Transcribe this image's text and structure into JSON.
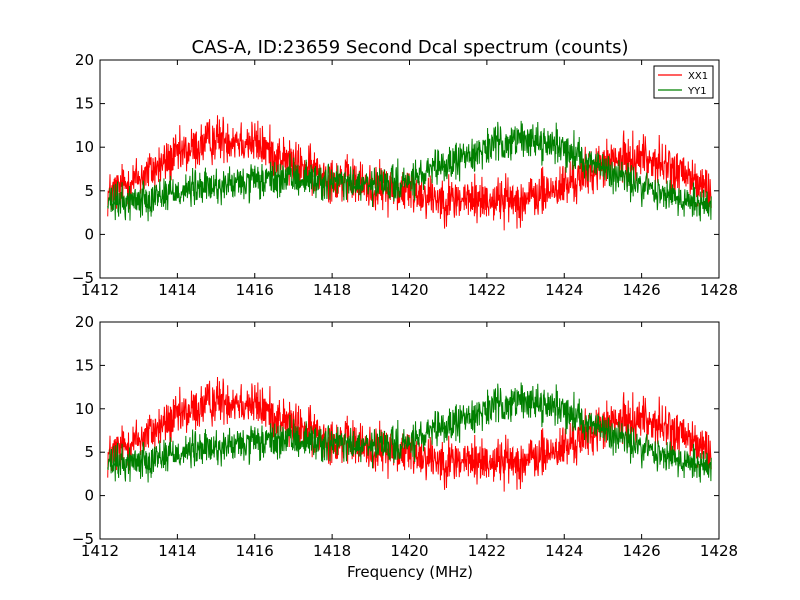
{
  "chart_data": {
    "type": "line",
    "title": "CAS-A, ID:23659 Second Dcal spectrum (counts)",
    "xlabel": "Frequency (MHz)",
    "xlim": [
      1412,
      1428
    ],
    "ylim": [
      -5,
      20
    ],
    "xticks": [
      "1412",
      "1414",
      "1416",
      "1418",
      "1420",
      "1422",
      "1424",
      "1426",
      "1428"
    ],
    "yticks": [
      "−5",
      "0",
      "5",
      "10",
      "15",
      "20"
    ],
    "legend": {
      "placement": "top-right"
    },
    "series": [
      {
        "name": "XX1",
        "color": "#ff0000",
        "x": [
          1412.2,
          1413,
          1414,
          1415,
          1415.5,
          1416,
          1417,
          1418,
          1419,
          1420,
          1421,
          1422,
          1423,
          1424,
          1425,
          1426,
          1427,
          1427.8
        ],
        "y": [
          4.5,
          6.5,
          9,
          11,
          11,
          10.5,
          8,
          6.5,
          5.5,
          5,
          4,
          4,
          4,
          5.5,
          8,
          9,
          7,
          5
        ],
        "noise": 2.3
      },
      {
        "name": "YY1",
        "color": "#008000",
        "x": [
          1412.2,
          1413,
          1414,
          1415,
          1416,
          1417,
          1418,
          1419,
          1420,
          1421,
          1422,
          1423,
          1424,
          1425,
          1426,
          1427,
          1427.8
        ],
        "y": [
          3.5,
          4,
          5,
          5.5,
          6,
          6.5,
          6,
          5.5,
          6,
          8,
          10,
          11,
          10,
          7.5,
          5.5,
          4,
          3.5
        ],
        "noise": 1.8
      }
    ],
    "panels": [
      {
        "name": "top",
        "legend": true,
        "show_xlabel": false
      },
      {
        "name": "bottom",
        "legend": false,
        "show_xlabel": true
      }
    ]
  }
}
